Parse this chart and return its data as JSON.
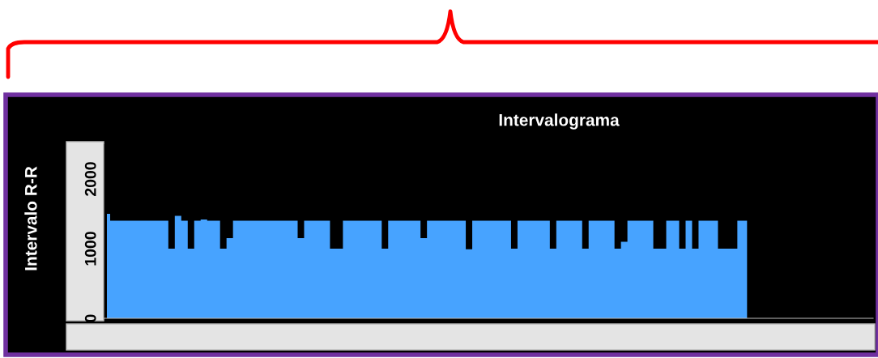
{
  "chart_data": {
    "type": "area",
    "title": "Intervalograma",
    "ylabel": "Intervalo R-R",
    "categories": [
      null,
      null,
      null,
      null,
      null,
      null,
      null,
      null,
      null,
      null,
      null,
      null,
      null,
      null,
      null,
      null,
      null,
      null,
      null,
      null,
      null,
      null,
      null,
      null,
      null,
      null,
      null,
      null,
      null,
      null,
      null,
      null,
      null,
      null,
      null,
      null,
      null,
      null,
      null,
      null,
      null,
      null,
      null,
      null,
      null,
      null,
      null,
      null,
      null,
      null,
      null,
      null,
      null,
      null,
      null,
      null,
      null,
      null,
      null,
      null,
      null,
      null,
      null,
      null,
      null,
      null,
      null,
      null,
      null,
      null,
      null,
      null,
      null,
      null,
      null,
      null,
      null,
      null,
      null,
      null,
      null,
      null,
      null,
      null,
      null,
      null,
      null,
      null,
      null,
      null,
      null,
      null,
      null,
      null,
      null,
      null,
      null,
      null,
      null,
      null,
      null,
      null,
      null,
      null,
      null,
      null,
      null,
      null,
      null,
      null,
      null,
      null,
      null,
      null,
      null,
      null,
      null,
      null,
      null
    ],
    "values": [
      1500,
      1400,
      1400,
      1400,
      1400,
      1400,
      1400,
      1400,
      1400,
      1400,
      1000,
      1470,
      1400,
      1000,
      1400,
      1420,
      1400,
      1400,
      1000,
      1150,
      1400,
      1400,
      1400,
      1400,
      1400,
      1400,
      1400,
      1400,
      1400,
      1400,
      1150,
      1400,
      1400,
      1400,
      1400,
      1000,
      1000,
      1400,
      1400,
      1400,
      1400,
      1400,
      1400,
      1000,
      1400,
      1400,
      1400,
      1400,
      1400,
      1150,
      1400,
      1400,
      1400,
      1400,
      1400,
      1400,
      990,
      1400,
      1400,
      1400,
      1400,
      1400,
      1400,
      1000,
      1400,
      1400,
      1400,
      1400,
      1400,
      1000,
      1400,
      1400,
      1400,
      1400,
      1000,
      1400,
      1400,
      1400,
      1400,
      1000,
      1100,
      1400,
      1400,
      1400,
      1400,
      1000,
      1000,
      1400,
      1400,
      1000,
      1400,
      1000,
      1400,
      1400,
      1400,
      1000,
      1000,
      1000,
      1400,
      1400,
      null,
      null,
      null,
      null,
      null,
      null,
      null,
      null,
      null,
      null,
      null,
      null,
      null,
      null,
      null,
      null,
      null,
      null,
      null
    ],
    "color": "#47a3ff",
    "ylim": [
      0,
      2500
    ],
    "yticks": [
      0,
      1000,
      2000
    ],
    "grid": false,
    "tick_labels": "y"
  }
}
